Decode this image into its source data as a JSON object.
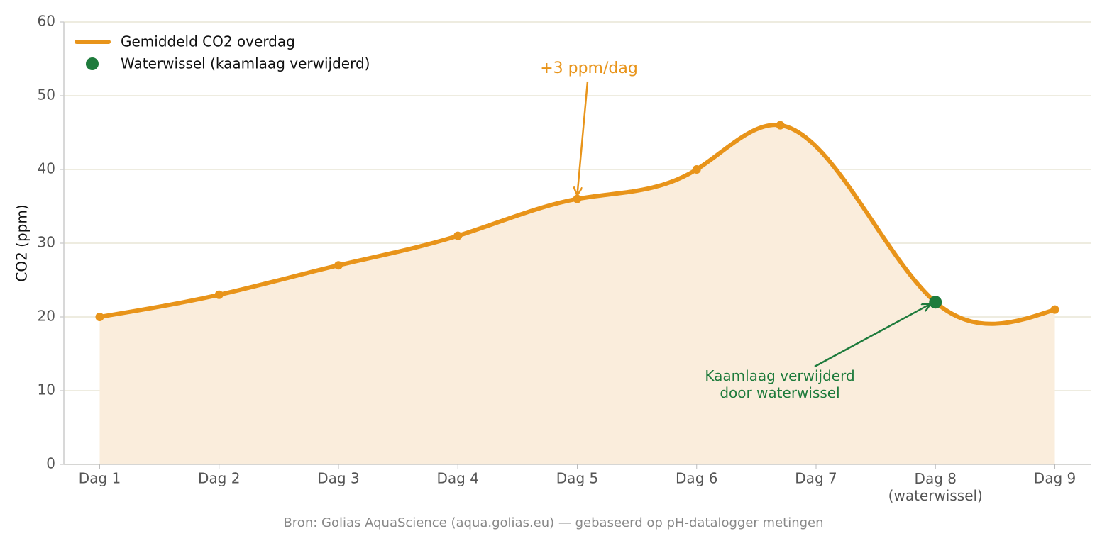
{
  "chart_data": {
    "type": "line",
    "ylabel": "CO2 (ppm)",
    "source": "Bron: Golias AquaScience (aqua.golias.eu) — gebaseerd op pH-datalogger metingen",
    "x": [
      1,
      2,
      3,
      4,
      5,
      6,
      6.7,
      8,
      9
    ],
    "series": [
      {
        "name": "Gemiddeld CO2 overdag",
        "color": "#e8941a",
        "fill": "#faeddc",
        "values": [
          20,
          23,
          27,
          31,
          36,
          40,
          46,
          22,
          21
        ]
      },
      {
        "name": "Waterwissel (kaamlaag verwijderd)",
        "color": "#1e7b3c",
        "x": [
          8
        ],
        "values": [
          22
        ]
      }
    ],
    "xlim": [
      0.7,
      9.3
    ],
    "xticks": [
      {
        "value": 1,
        "label": "Dag 1"
      },
      {
        "value": 2,
        "label": "Dag 2"
      },
      {
        "value": 3,
        "label": "Dag 3"
      },
      {
        "value": 4,
        "label": "Dag 4"
      },
      {
        "value": 5,
        "label": "Dag 5"
      },
      {
        "value": 6,
        "label": "Dag 6"
      },
      {
        "value": 7,
        "label": "Dag 7"
      },
      {
        "value": 8,
        "label": "Dag 8\n(waterwissel)"
      },
      {
        "value": 9,
        "label": "Dag 9"
      }
    ],
    "ylim": [
      0,
      60
    ],
    "yticks": [
      0,
      10,
      20,
      30,
      40,
      50,
      60
    ],
    "grid": true,
    "legend": "upper-left",
    "annotations": [
      {
        "text": "+3 ppm/dag",
        "color": "#e8941a"
      },
      {
        "text": "Kaamlaag verwijderd\ndoor waterwissel",
        "color": "#1e7b3c"
      }
    ]
  }
}
